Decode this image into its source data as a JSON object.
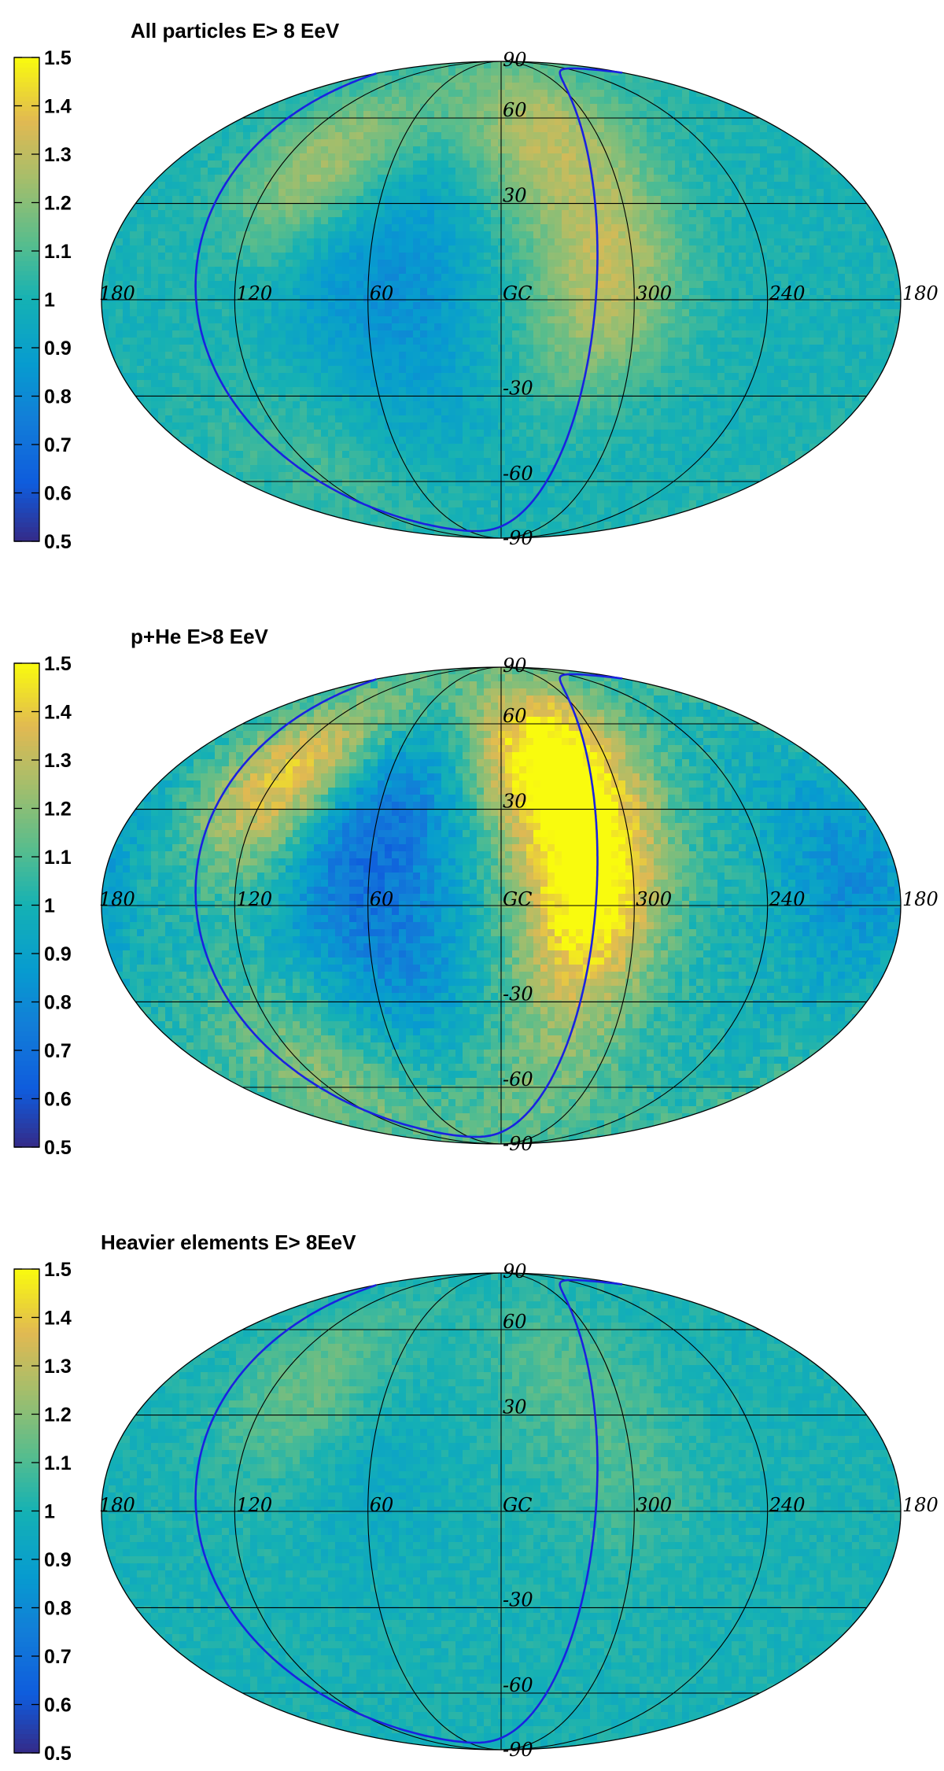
{
  "chart_data": [
    {
      "type": "heatmap",
      "projection": "mollweide",
      "title": "All particles E> 8 EeV",
      "colorbar": {
        "min": 0.5,
        "max": 1.5,
        "ticks": [
          "0.5",
          "0.6",
          "0.7",
          "0.8",
          "0.9",
          "1",
          "1.1",
          "1.2",
          "1.3",
          "1.4",
          "1.5"
        ]
      },
      "lon_labels": [
        "180",
        "120",
        "60",
        "GC",
        "300",
        "240",
        "180"
      ],
      "lat_labels": [
        "90",
        "60",
        "30",
        "-30",
        "-60",
        "-90"
      ],
      "grid": true,
      "hotspots": [
        {
          "lon": 95,
          "lat": 40,
          "value": 1.28
        },
        {
          "lon": 335,
          "lat": 55,
          "value": 1.27
        },
        {
          "lon": 305,
          "lat": 15,
          "value": 1.18
        },
        {
          "lon": 320,
          "lat": -5,
          "value": 1.16
        },
        {
          "lon": 80,
          "lat": 10,
          "value": 0.86
        },
        {
          "lon": 40,
          "lat": 20,
          "value": 0.88
        },
        {
          "lon": 40,
          "lat": -20,
          "value": 0.9
        },
        {
          "lon": 120,
          "lat": -55,
          "value": 1.08
        }
      ],
      "supergalactic_plane": true
    },
    {
      "type": "heatmap",
      "projection": "mollweide",
      "title": "p+He E>8 EeV",
      "colorbar": {
        "min": 0.5,
        "max": 1.5,
        "ticks": [
          "0.5",
          "0.6",
          "0.7",
          "0.8",
          "0.9",
          "1",
          "1.1",
          "1.2",
          "1.3",
          "1.4",
          "1.5"
        ]
      },
      "lon_labels": [
        "180",
        "120",
        "60",
        "GC",
        "300",
        "240",
        "180"
      ],
      "lat_labels": [
        "90",
        "60",
        "30",
        "-30",
        "-60",
        "-90"
      ],
      "grid": true,
      "hotspots": [
        {
          "lon": 110,
          "lat": 40,
          "value": 1.45
        },
        {
          "lon": 335,
          "lat": 50,
          "value": 1.5
        },
        {
          "lon": 315,
          "lat": 15,
          "value": 1.36
        },
        {
          "lon": 325,
          "lat": -10,
          "value": 1.3
        },
        {
          "lon": 80,
          "lat": 15,
          "value": 0.78
        },
        {
          "lon": 50,
          "lat": 35,
          "value": 0.78
        },
        {
          "lon": 45,
          "lat": -15,
          "value": 0.82
        },
        {
          "lon": 200,
          "lat": 10,
          "value": 0.82
        },
        {
          "lon": 120,
          "lat": -55,
          "value": 1.18
        },
        {
          "lon": 330,
          "lat": -60,
          "value": 1.14
        }
      ],
      "supergalactic_plane": true
    },
    {
      "type": "heatmap",
      "projection": "mollweide",
      "title": "Heavier elements E> 8EeV",
      "colorbar": {
        "min": 0.5,
        "max": 1.5,
        "ticks": [
          "0.5",
          "0.6",
          "0.7",
          "0.8",
          "0.9",
          "1",
          "1.1",
          "1.2",
          "1.3",
          "1.4",
          "1.5"
        ]
      },
      "lon_labels": [
        "180",
        "120",
        "60",
        "GC",
        "300",
        "240",
        "180"
      ],
      "lat_labels": [
        "90",
        "60",
        "30",
        "-30",
        "-60",
        "-90"
      ],
      "grid": true,
      "hotspots": [
        {
          "lon": 100,
          "lat": 40,
          "value": 1.15
        },
        {
          "lon": 330,
          "lat": 45,
          "value": 1.1
        },
        {
          "lon": 300,
          "lat": 10,
          "value": 1.08
        },
        {
          "lon": 60,
          "lat": 10,
          "value": 0.94
        }
      ],
      "supergalactic_plane": true
    }
  ]
}
